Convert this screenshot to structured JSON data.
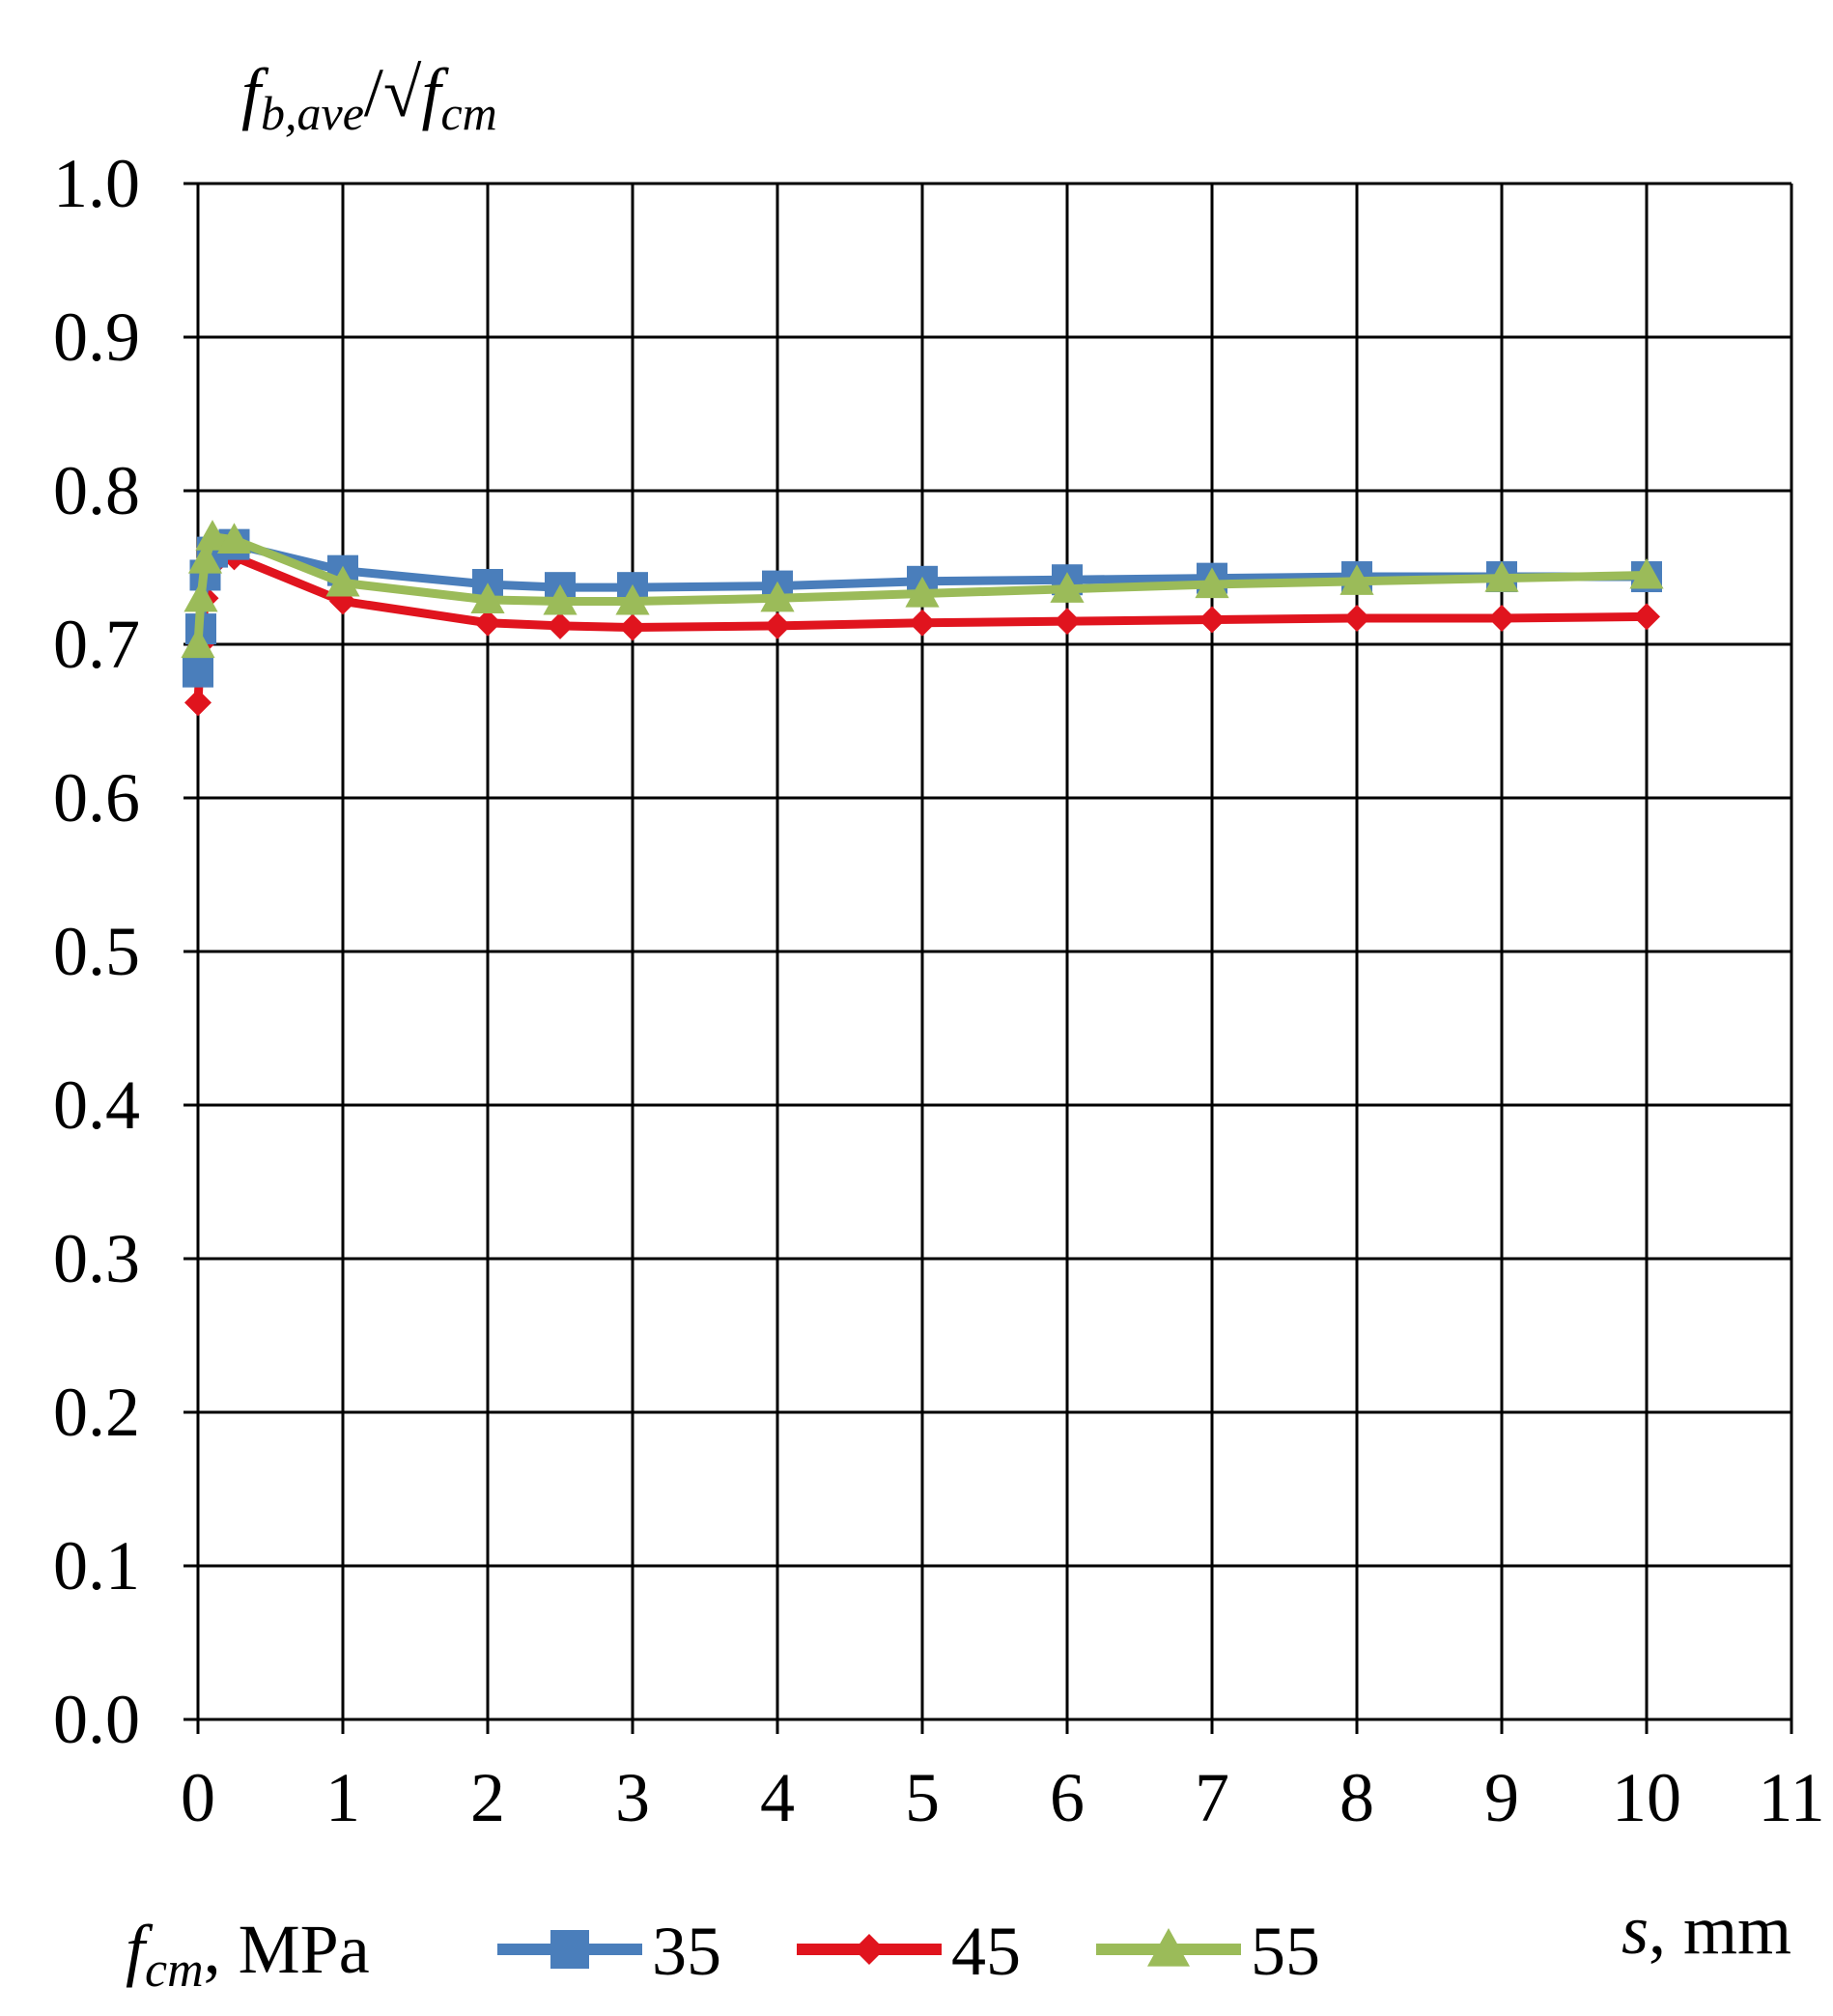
{
  "chart_data": {
    "type": "line",
    "title": "",
    "ylabel": {
      "main": "f",
      "main_sub": "b,ave",
      "slash": "/√",
      "denom": "f",
      "denom_sub": "cm"
    },
    "xlabel": {
      "var": "s",
      "unit": ", mm"
    },
    "xlim": [
      0,
      11
    ],
    "ylim": [
      0,
      1.0
    ],
    "x_ticks": [
      "0",
      "1",
      "2",
      "3",
      "4",
      "5",
      "6",
      "7",
      "8",
      "9",
      "10",
      "11"
    ],
    "y_ticks": [
      "0.0",
      "0.1",
      "0.2",
      "0.3",
      "0.4",
      "0.5",
      "0.6",
      "0.7",
      "0.8",
      "0.9",
      "1.0"
    ],
    "grid": true,
    "legend_position": "bottom",
    "legend_title": {
      "var": "f",
      "sub": "cm",
      "unit": ", MPa"
    },
    "series": [
      {
        "name": "35",
        "color": "#4a7ebb",
        "marker": "square",
        "x": [
          0,
          0.02,
          0.05,
          0.1,
          0.25,
          1,
          2,
          2.5,
          3,
          4,
          5,
          6,
          7,
          8,
          9,
          10
        ],
        "y": [
          0.682,
          0.71,
          0.745,
          0.76,
          0.765,
          0.748,
          0.739,
          0.737,
          0.737,
          0.738,
          0.741,
          0.742,
          0.743,
          0.744,
          0.744,
          0.744
        ]
      },
      {
        "name": "45",
        "color": "#e0141e",
        "marker": "diamond",
        "x": [
          0,
          0.02,
          0.05,
          0.1,
          0.25,
          1,
          2,
          2.5,
          3,
          4,
          5,
          6,
          7,
          8,
          9,
          10
        ],
        "y": [
          0.662,
          0.7,
          0.73,
          0.752,
          0.757,
          0.728,
          0.714,
          0.712,
          0.711,
          0.712,
          0.714,
          0.715,
          0.716,
          0.717,
          0.717,
          0.718
        ]
      },
      {
        "name": "55",
        "color": "#9bbb59",
        "marker": "triangle",
        "x": [
          0,
          0.02,
          0.05,
          0.1,
          0.25,
          1,
          2,
          2.5,
          3,
          4,
          5,
          6,
          7,
          8,
          9,
          10
        ],
        "y": [
          0.7,
          0.73,
          0.755,
          0.77,
          0.768,
          0.74,
          0.729,
          0.728,
          0.728,
          0.73,
          0.733,
          0.736,
          0.739,
          0.741,
          0.743,
          0.745
        ]
      }
    ]
  }
}
